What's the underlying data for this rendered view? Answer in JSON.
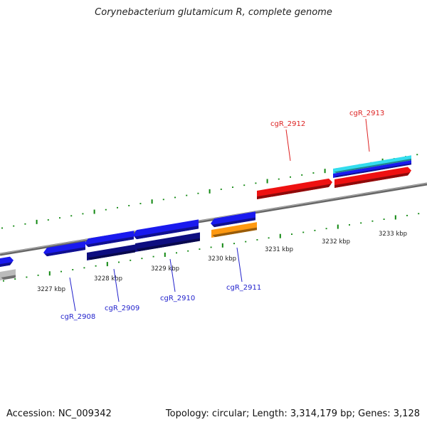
{
  "title": "Corynebacterium glutamicum R, complete genome",
  "footer": {
    "accession": "Accession: NC_009342",
    "summary": "Topology: circular; Length: 3,314,179 bp; Genes: 3,128"
  },
  "colors": {
    "forward_gene": "#ee1111",
    "reverse_gene": "#1a1aee",
    "reverse_gene_dark": "#0d0d80",
    "highlight_cyan": "#33ddee",
    "orange_feature": "#ff9911",
    "grey_feature": "#bbbbbb",
    "backbone": "#888888",
    "tick": "#118811"
  },
  "scale": {
    "unit": "kbp",
    "labels": [
      "3227 kbp",
      "3228 kbp",
      "3229 kbp",
      "3230 kbp",
      "3231 kbp",
      "3232 kbp",
      "3233 kbp"
    ]
  },
  "genes": {
    "forward": [
      "cgR_2912",
      "cgR_2913"
    ],
    "reverse": [
      "cgR_2908",
      "cgR_2909",
      "cgR_2910",
      "cgR_2911"
    ]
  }
}
